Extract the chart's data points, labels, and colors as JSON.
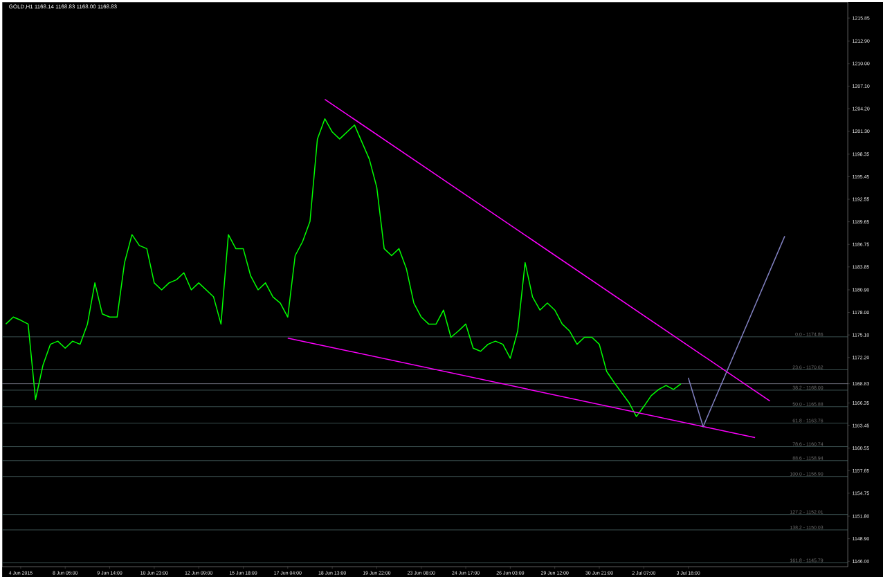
{
  "chart_data": {
    "type": "line",
    "title": "GOLD,H1  1168.14 1168.83 1168.00 1168.83",
    "categories": [
      null,
      null,
      "4 Jun 2015",
      null,
      null,
      null,
      null,
      null,
      "8 Jun 05:00",
      null,
      null,
      null,
      null,
      null,
      "9 Jun 14:00",
      null,
      null,
      null,
      null,
      null,
      "10 Jun 23:00",
      null,
      null,
      null,
      null,
      null,
      "12 Jun 09:00",
      null,
      null,
      null,
      null,
      null,
      "15 Jun 18:00",
      null,
      null,
      null,
      null,
      null,
      "17 Jun 04:00",
      null,
      null,
      null,
      null,
      null,
      "18 Jun 13:00",
      null,
      null,
      null,
      null,
      null,
      "19 Jun 22:00",
      null,
      null,
      null,
      null,
      null,
      "23 Jun 08:00",
      null,
      null,
      null,
      null,
      null,
      "24 Jun 17:00",
      null,
      null,
      null,
      null,
      null,
      "26 Jun 03:00",
      null,
      null,
      null,
      null,
      null,
      "29 Jun 12:00",
      null,
      null,
      null,
      null,
      null,
      "30 Jun 21:00",
      null,
      null,
      null,
      null,
      null,
      "2 Jul 07:00",
      null,
      null,
      null,
      null,
      null,
      "3 Jul 16:00",
      null,
      null,
      null,
      null,
      null,
      null,
      null,
      null,
      null,
      null,
      null,
      null,
      null,
      null,
      null,
      null,
      null,
      null,
      null,
      null,
      null
    ],
    "series": [
      {
        "color": "#00ff00",
        "values": [
          1176.5,
          1177.4,
          1177.0,
          1176.5,
          1166.8,
          1171.2,
          1173.9,
          1174.3,
          1173.4,
          1174.3,
          1173.9,
          1176.5,
          1181.8,
          1177.8,
          1177.4,
          1177.4,
          1184.4,
          1188.0,
          1186.6,
          1186.2,
          1181.8,
          1180.9,
          1181.8,
          1182.2,
          1183.1,
          1180.9,
          1181.8,
          1180.9,
          1180.0,
          1176.5,
          1188.0,
          1186.2,
          1186.2,
          1182.7,
          1180.9,
          1181.8,
          1180.0,
          1179.2,
          1177.4,
          1185.3,
          1187.1,
          1189.7,
          1200.3,
          1202.9,
          1201.2,
          1200.3,
          1201.2,
          1202.1,
          1199.9,
          1197.7,
          1194.1,
          1186.2,
          1185.3,
          1186.2,
          1183.6,
          1179.2,
          1177.4,
          1176.5,
          1176.5,
          1178.3,
          1174.8,
          1175.6,
          1176.5,
          1173.4,
          1173.0,
          1173.9,
          1174.3,
          1173.9,
          1172.1,
          1175.6,
          1184.4,
          1180.0,
          1178.3,
          1179.2,
          1178.3,
          1176.5,
          1175.6,
          1173.9,
          1174.8,
          1174.8,
          1173.9,
          1170.4,
          1169.0,
          1167.7,
          1166.4,
          1164.6,
          1165.9,
          1167.3,
          1168.1,
          1168.6,
          1168.1,
          1168.8,
          null,
          null,
          null,
          null,
          null,
          null,
          null,
          null,
          null,
          null,
          null,
          null,
          null,
          null,
          null,
          null,
          null,
          null,
          null,
          null,
          null,
          null
        ]
      },
      {
        "color": "#ff00ff",
        "values": [
          null,
          null,
          null,
          null,
          null,
          null,
          null,
          null,
          null,
          null,
          null,
          null,
          null,
          null,
          null,
          null,
          null,
          null,
          null,
          null,
          null,
          null,
          null,
          null,
          null,
          null,
          null,
          null,
          null,
          null,
          null,
          null,
          null,
          null,
          null,
          null,
          null,
          null,
          null,
          null,
          null,
          null,
          null,
          1205.4,
          null,
          null,
          null,
          null,
          null,
          null,
          null,
          null,
          null,
          null,
          null,
          null,
          null,
          null,
          null,
          null,
          null,
          null,
          null,
          null,
          null,
          null,
          null,
          null,
          null,
          null,
          null,
          null,
          null,
          null,
          null,
          null,
          null,
          null,
          null,
          null,
          null,
          null,
          null,
          null,
          null,
          null,
          null,
          null,
          null,
          null,
          null,
          null,
          null,
          null,
          null,
          null,
          null,
          null,
          null,
          null,
          null,
          null,
          null,
          1166.6,
          null,
          null,
          null,
          null,
          null,
          null,
          null,
          null,
          null,
          null
        ]
      },
      {
        "color": "#ff00ff",
        "values": [
          null,
          null,
          null,
          null,
          null,
          null,
          null,
          null,
          null,
          null,
          null,
          null,
          null,
          null,
          null,
          null,
          null,
          null,
          null,
          null,
          null,
          null,
          null,
          null,
          null,
          null,
          null,
          null,
          null,
          null,
          null,
          null,
          null,
          null,
          null,
          null,
          null,
          null,
          1174.7,
          null,
          null,
          null,
          null,
          null,
          null,
          null,
          null,
          null,
          null,
          null,
          null,
          null,
          null,
          null,
          null,
          null,
          null,
          null,
          null,
          null,
          null,
          null,
          null,
          null,
          null,
          null,
          null,
          null,
          null,
          null,
          null,
          null,
          null,
          null,
          null,
          null,
          null,
          null,
          null,
          null,
          null,
          null,
          null,
          null,
          null,
          null,
          null,
          null,
          null,
          null,
          null,
          null,
          null,
          null,
          null,
          null,
          null,
          null,
          null,
          null,
          null,
          1161.9,
          null,
          null,
          null,
          null,
          null,
          null,
          null,
          null,
          null,
          null,
          null,
          null
        ]
      },
      {
        "color": "#8080c0",
        "values": [
          null,
          null,
          null,
          null,
          null,
          null,
          null,
          null,
          null,
          null,
          null,
          null,
          null,
          null,
          null,
          null,
          null,
          null,
          null,
          null,
          null,
          null,
          null,
          null,
          null,
          null,
          null,
          null,
          null,
          null,
          null,
          null,
          null,
          null,
          null,
          null,
          null,
          null,
          null,
          null,
          null,
          null,
          null,
          null,
          null,
          null,
          null,
          null,
          null,
          null,
          null,
          null,
          null,
          null,
          null,
          null,
          null,
          null,
          null,
          null,
          null,
          null,
          null,
          null,
          null,
          null,
          null,
          null,
          null,
          null,
          null,
          null,
          null,
          null,
          null,
          null,
          null,
          null,
          null,
          null,
          null,
          null,
          null,
          null,
          null,
          null,
          null,
          null,
          null,
          null,
          null,
          null,
          1169.6,
          null,
          1163.3,
          null,
          null,
          null,
          null,
          null,
          null,
          null,
          null,
          null,
          null,
          1187.8,
          null,
          null,
          null,
          null,
          null,
          null,
          null,
          null
        ]
      }
    ],
    "ylim": [
      1145.3,
      1217.9
    ],
    "yticks": [
      1215.85,
      {
        "value": 1212.9,
        "label": "1212.90"
      },
      {
        "value": 1210,
        "label": "1210.00"
      },
      {
        "value": 1207.1,
        "label": "1207.10"
      },
      {
        "value": 1204.2,
        "label": "1204.20"
      },
      {
        "value": 1201.3,
        "label": "1201.30"
      },
      1198.35,
      1195.45,
      1192.55,
      1189.65,
      1186.75,
      1183.85,
      {
        "value": 1180.9,
        "label": "1180.90"
      },
      {
        "value": 1178,
        "label": "1178.00"
      },
      {
        "value": 1175.1,
        "label": "1175.10"
      },
      {
        "value": 1172.2,
        "label": "1172.20"
      },
      {
        "value": 1168.83,
        "label": "1168.83"
      },
      1166.35,
      1163.45,
      1160.55,
      1157.65,
      1154.75,
      {
        "value": 1151.8,
        "label": "1151.80"
      },
      {
        "value": 1148.9,
        "label": "1148.90"
      },
      {
        "value": 1146,
        "label": "1146.00"
      }
    ],
    "ref_lines": [
      {
        "axis": "y",
        "value": 1168.83,
        "color": "#8a8a9a"
      },
      {
        "axis": "y",
        "value": 1174.86,
        "color": "#4a6464"
      },
      {
        "axis": "y",
        "value": 1170.62,
        "color": "#4a6464"
      },
      {
        "axis": "y",
        "value": 1168.0,
        "color": "#4a6464"
      },
      {
        "axis": "y",
        "value": 1165.88,
        "color": "#4a6464"
      },
      {
        "axis": "y",
        "value": 1163.76,
        "color": "#4a6464"
      },
      {
        "axis": "y",
        "value": 1160.74,
        "color": "#4a6464"
      },
      {
        "axis": "y",
        "value": 1158.94,
        "color": "#4a6464"
      },
      {
        "axis": "y",
        "value": 1156.9,
        "color": "#4a6464"
      },
      {
        "axis": "y",
        "value": 1152.01,
        "color": "#4a6464"
      },
      {
        "axis": "y",
        "value": 1150.03,
        "color": "#4a6464"
      },
      {
        "axis": "y",
        "value": 1145.79,
        "color": "#4a6464"
      }
    ],
    "annotations": [
      {
        "text": "0.0 - 1174.86",
        "y": 1174.86
      },
      {
        "text": "23.6 - 1170.62",
        "y": 1170.62
      },
      {
        "text": "38.2 - 1168.00",
        "y": 1168.0
      },
      {
        "text": "50.0 - 1165.88",
        "y": 1165.88
      },
      {
        "text": "61.8 - 1163.76",
        "y": 1163.76
      },
      {
        "text": "78.6 - 1160.74",
        "y": 1160.74
      },
      {
        "text": "88.6 - 1158.94",
        "y": 1158.94
      },
      {
        "text": "100.0 - 1156.90",
        "y": 1156.9
      },
      {
        "text": "127.2 - 1152.01",
        "y": 1152.01
      },
      {
        "text": "138.2 - 1150.03",
        "y": 1150.03
      },
      {
        "text": "161.8 - 1145.79",
        "y": 1145.79
      }
    ]
  }
}
